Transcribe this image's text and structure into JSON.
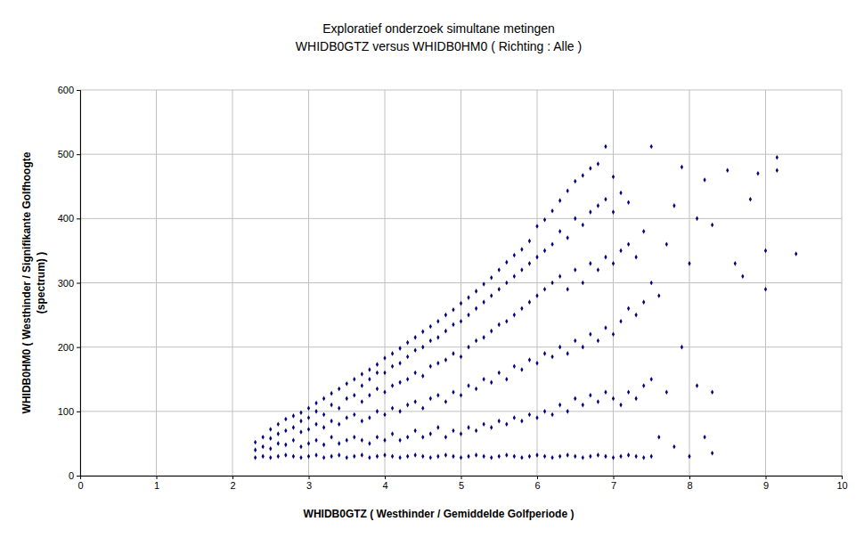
{
  "chart_data": {
    "type": "scatter",
    "title": [
      "Exploratief onderzoek simultane metingen",
      "WHIDB0GTZ versus WHIDB0HM0 ( Richting : Alle )"
    ],
    "x_label": "WHIDB0GTZ ( Westhinder / Gemiddelde Golfperiode )",
    "y_label": [
      "WHIDB0HM0 ( Westhinder / Signifikante Golfhoogte",
      "(spectrum) )"
    ],
    "color": "#000080",
    "marker": "diamond",
    "grid": true,
    "xlim": [
      0,
      10
    ],
    "xticks": [
      0,
      1,
      2,
      3,
      4,
      5,
      6,
      7,
      8,
      9,
      10
    ],
    "ylim": [
      0,
      600
    ],
    "yticks": [
      0,
      100,
      200,
      300,
      400,
      500,
      600
    ],
    "x": [
      2.3,
      2.3,
      2.3,
      2.4,
      2.4,
      2.4,
      2.5,
      2.5,
      2.5,
      2.5,
      2.6,
      2.6,
      2.6,
      2.6,
      2.7,
      2.7,
      2.7,
      2.7,
      2.8,
      2.8,
      2.8,
      2.8,
      2.9,
      2.9,
      2.9,
      2.9,
      2.9,
      3.0,
      3.0,
      3.0,
      3.0,
      3.0,
      3.1,
      3.1,
      3.1,
      3.1,
      3.1,
      3.2,
      3.2,
      3.2,
      3.2,
      3.2,
      3.3,
      3.3,
      3.3,
      3.3,
      3.3,
      3.4,
      3.4,
      3.4,
      3.4,
      3.4,
      3.5,
      3.5,
      3.5,
      3.5,
      3.5,
      3.6,
      3.6,
      3.6,
      3.6,
      3.6,
      3.7,
      3.7,
      3.7,
      3.7,
      3.7,
      3.7,
      3.8,
      3.8,
      3.8,
      3.8,
      3.8,
      3.8,
      3.9,
      3.9,
      3.9,
      3.9,
      3.9,
      3.9,
      4.0,
      4.0,
      4.0,
      4.0,
      4.0,
      4.0,
      4.1,
      4.1,
      4.1,
      4.1,
      4.1,
      4.1,
      4.2,
      4.2,
      4.2,
      4.2,
      4.2,
      4.2,
      4.3,
      4.3,
      4.3,
      4.3,
      4.3,
      4.3,
      4.4,
      4.4,
      4.4,
      4.4,
      4.4,
      4.4,
      4.5,
      4.5,
      4.5,
      4.5,
      4.5,
      4.5,
      4.6,
      4.6,
      4.6,
      4.6,
      4.6,
      4.6,
      4.7,
      4.7,
      4.7,
      4.7,
      4.7,
      4.7,
      4.8,
      4.8,
      4.8,
      4.8,
      4.8,
      4.8,
      4.9,
      4.9,
      4.9,
      4.9,
      4.9,
      4.9,
      5.0,
      5.0,
      5.0,
      5.0,
      5.0,
      5.0,
      5.1,
      5.1,
      5.1,
      5.1,
      5.1,
      5.1,
      5.2,
      5.2,
      5.2,
      5.2,
      5.2,
      5.2,
      5.3,
      5.3,
      5.3,
      5.3,
      5.3,
      5.3,
      5.4,
      5.4,
      5.4,
      5.4,
      5.4,
      5.4,
      5.5,
      5.5,
      5.5,
      5.5,
      5.5,
      5.5,
      5.6,
      5.6,
      5.6,
      5.6,
      5.6,
      5.6,
      5.7,
      5.7,
      5.7,
      5.7,
      5.7,
      5.7,
      5.8,
      5.8,
      5.8,
      5.8,
      5.8,
      5.8,
      5.9,
      5.9,
      5.9,
      5.9,
      5.9,
      5.9,
      6.0,
      6.0,
      6.0,
      6.0,
      6.0,
      6.0,
      6.1,
      6.1,
      6.1,
      6.1,
      6.1,
      6.1,
      6.2,
      6.2,
      6.2,
      6.2,
      6.2,
      6.2,
      6.3,
      6.3,
      6.3,
      6.3,
      6.3,
      6.3,
      6.4,
      6.4,
      6.4,
      6.4,
      6.4,
      6.4,
      6.5,
      6.5,
      6.5,
      6.5,
      6.5,
      6.5,
      6.6,
      6.6,
      6.6,
      6.6,
      6.6,
      6.6,
      6.7,
      6.7,
      6.7,
      6.7,
      6.7,
      6.7,
      6.8,
      6.8,
      6.8,
      6.8,
      6.8,
      6.8,
      6.9,
      6.9,
      6.9,
      6.9,
      6.9,
      6.9,
      7.0,
      7.0,
      7.0,
      7.0,
      7.0,
      7.0,
      7.1,
      7.1,
      7.1,
      7.1,
      7.1,
      7.2,
      7.2,
      7.2,
      7.2,
      7.2,
      7.3,
      7.3,
      7.3,
      7.3,
      7.4,
      7.4,
      7.4,
      7.4,
      7.5,
      7.5,
      7.5,
      7.5,
      7.6,
      7.6,
      7.7,
      7.7,
      7.8,
      7.8,
      7.9,
      7.9,
      8.0,
      8.0,
      8.1,
      8.1,
      8.2,
      8.2,
      8.3,
      8.3,
      8.3,
      8.5,
      8.6,
      8.7,
      8.8,
      8.9,
      9.0,
      9.0,
      9.15,
      9.15,
      9.4
    ],
    "values": [
      28,
      40,
      52,
      30,
      45,
      60,
      28,
      42,
      58,
      72,
      30,
      50,
      65,
      80,
      32,
      48,
      70,
      88,
      30,
      55,
      75,
      93,
      28,
      45,
      68,
      85,
      98,
      30,
      50,
      72,
      90,
      105,
      32,
      55,
      80,
      100,
      113,
      28,
      48,
      75,
      95,
      120,
      30,
      60,
      85,
      110,
      128,
      32,
      50,
      80,
      105,
      135,
      28,
      55,
      90,
      120,
      143,
      30,
      60,
      95,
      125,
      150,
      32,
      55,
      85,
      115,
      140,
      158,
      28,
      50,
      90,
      125,
      150,
      165,
      30,
      60,
      100,
      135,
      160,
      173,
      32,
      55,
      95,
      130,
      160,
      183,
      30,
      65,
      105,
      140,
      170,
      190,
      28,
      55,
      100,
      145,
      175,
      198,
      30,
      60,
      110,
      150,
      185,
      207,
      32,
      70,
      115,
      160,
      195,
      215,
      30,
      60,
      105,
      155,
      200,
      224,
      28,
      65,
      120,
      170,
      210,
      232,
      30,
      75,
      125,
      175,
      215,
      240,
      32,
      60,
      115,
      180,
      225,
      250,
      30,
      70,
      130,
      190,
      235,
      258,
      28,
      65,
      125,
      185,
      240,
      268,
      30,
      75,
      140,
      200,
      250,
      277,
      32,
      70,
      135,
      210,
      260,
      287,
      30,
      80,
      150,
      215,
      270,
      298,
      28,
      75,
      145,
      225,
      280,
      308,
      30,
      85,
      160,
      235,
      290,
      320,
      32,
      80,
      150,
      240,
      300,
      332,
      30,
      90,
      170,
      250,
      310,
      343,
      28,
      85,
      165,
      260,
      320,
      352,
      30,
      95,
      180,
      270,
      330,
      365,
      32,
      90,
      175,
      280,
      340,
      388,
      30,
      100,
      190,
      290,
      350,
      398,
      28,
      95,
      185,
      300,
      360,
      412,
      30,
      110,
      200,
      310,
      380,
      428,
      32,
      100,
      190,
      290,
      370,
      443,
      30,
      120,
      210,
      320,
      400,
      458,
      28,
      110,
      200,
      300,
      390,
      467,
      30,
      125,
      220,
      330,
      410,
      478,
      32,
      115,
      210,
      320,
      420,
      485,
      30,
      130,
      230,
      340,
      430,
      512,
      28,
      120,
      220,
      330,
      410,
      465,
      30,
      110,
      240,
      350,
      440,
      32,
      130,
      260,
      360,
      425,
      30,
      120,
      250,
      340,
      28,
      140,
      270,
      380,
      30,
      150,
      300,
      512,
      60,
      280,
      130,
      360,
      45,
      420,
      200,
      480,
      30,
      330,
      140,
      400,
      60,
      460,
      35,
      130,
      390,
      475,
      330,
      310,
      430,
      470,
      290,
      350,
      495,
      475,
      345
    ]
  }
}
